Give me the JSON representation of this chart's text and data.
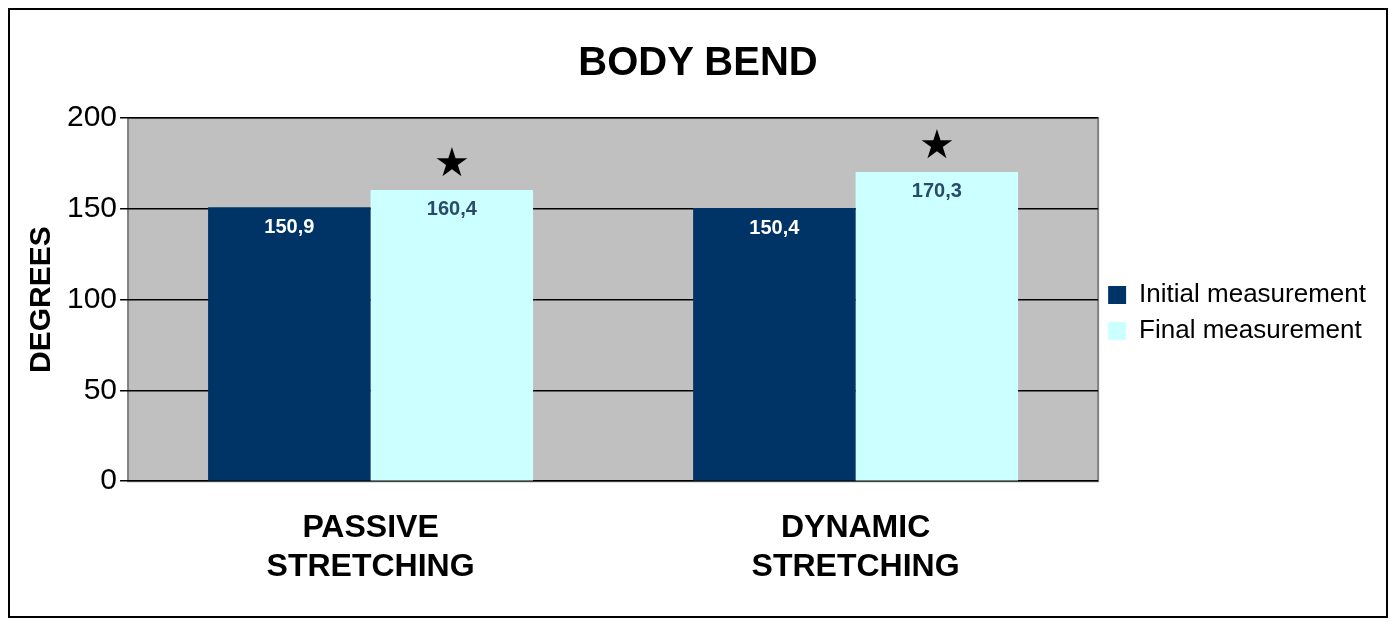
{
  "chart_data": {
    "type": "bar",
    "title": "BODY BEND",
    "ylabel": "DEGREES",
    "categories": [
      "PASSIVE STRETCHING",
      "DYNAMIC STRETCHING"
    ],
    "series": [
      {
        "name": "Initial measurement",
        "color": "#003366",
        "values": [
          150.9,
          150.4
        ],
        "value_labels": [
          "150,9",
          "150,4"
        ]
      },
      {
        "name": "Final measurement",
        "color": "#ccffff",
        "values": [
          160.4,
          170.3
        ],
        "value_labels": [
          "160,4",
          "170,3"
        ]
      }
    ],
    "ylim": [
      0,
      200
    ],
    "yticks": [
      0,
      50,
      100,
      150,
      200
    ],
    "grid": "y",
    "legend": "right",
    "annotations": [
      "★",
      "★"
    ]
  }
}
